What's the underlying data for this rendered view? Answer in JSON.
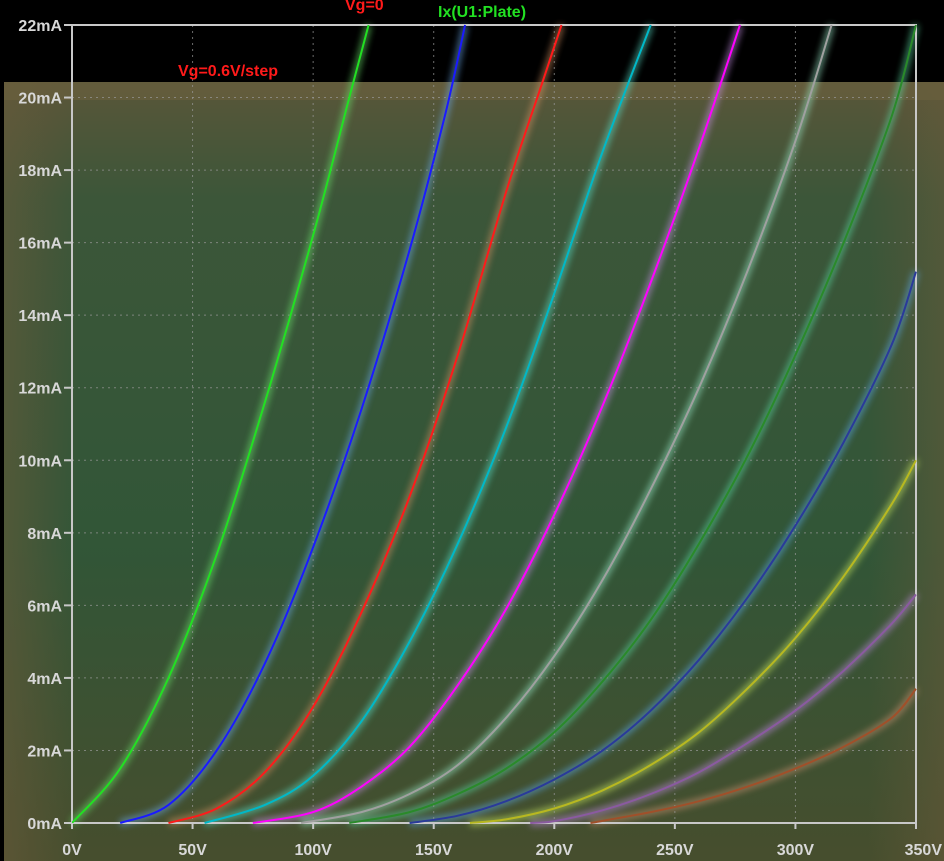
{
  "chart_data": {
    "type": "line",
    "title": "",
    "xlabel": "",
    "ylabel": "",
    "xlim": [
      0,
      350
    ],
    "ylim": [
      0,
      22
    ],
    "grid": true,
    "x_ticks": [
      {
        "value": 0,
        "label": "0V"
      },
      {
        "value": 50,
        "label": "50V"
      },
      {
        "value": 100,
        "label": "100V"
      },
      {
        "value": 150,
        "label": "150V"
      },
      {
        "value": 200,
        "label": "200V"
      },
      {
        "value": 250,
        "label": "250V"
      },
      {
        "value": 300,
        "label": "300V"
      },
      {
        "value": 350,
        "label": "350V"
      }
    ],
    "y_ticks": [
      {
        "value": 0,
        "label": "0mA"
      },
      {
        "value": 2,
        "label": "2mA"
      },
      {
        "value": 4,
        "label": "4mA"
      },
      {
        "value": 6,
        "label": "6mA"
      },
      {
        "value": 8,
        "label": "8mA"
      },
      {
        "value": 10,
        "label": "10mA"
      },
      {
        "value": 12,
        "label": "12mA"
      },
      {
        "value": 14,
        "label": "14mA"
      },
      {
        "value": 16,
        "label": "16mA"
      },
      {
        "value": 18,
        "label": "18mA"
      },
      {
        "value": 20,
        "label": "20mA"
      },
      {
        "value": 22,
        "label": "22mA"
      }
    ],
    "annotations": [
      {
        "text": "Vg=0",
        "color": "#ff1a1a"
      },
      {
        "text": "Ix(U1:Plate)",
        "color": "#22e022"
      },
      {
        "text": "Vg=0.6V/step",
        "color": "#ff1a1a"
      }
    ],
    "series": [
      {
        "color": "#22e022",
        "x": [
          0,
          20,
          40,
          60,
          80,
          100,
          115,
          123
        ],
        "y": [
          0,
          1.5,
          4.0,
          7.4,
          11.6,
          16.2,
          20.0,
          22.0
        ]
      },
      {
        "color": "#1a1aff",
        "x": [
          20,
          40,
          60,
          80,
          100,
          120,
          140,
          155,
          163
        ],
        "y": [
          0,
          0.5,
          2.0,
          4.4,
          7.6,
          11.4,
          15.8,
          19.6,
          22.0
        ]
      },
      {
        "color": "#ff1a1a",
        "x": [
          40,
          60,
          80,
          100,
          120,
          140,
          160,
          180,
          195,
          203
        ],
        "y": [
          0,
          0.4,
          1.4,
          3.2,
          5.8,
          9.0,
          12.9,
          17.4,
          20.4,
          22.0
        ]
      },
      {
        "color": "#00b8c8",
        "x": [
          55,
          80,
          100,
          120,
          140,
          160,
          180,
          200,
          220,
          240
        ],
        "y": [
          0,
          0.5,
          1.3,
          2.8,
          5.0,
          7.7,
          10.9,
          14.6,
          18.5,
          22.0
        ]
      },
      {
        "color": "#ff00ff",
        "x": [
          75,
          100,
          120,
          140,
          160,
          180,
          200,
          220,
          240,
          260,
          277
        ],
        "y": [
          0,
          0.3,
          1.0,
          2.1,
          3.8,
          5.9,
          8.5,
          11.5,
          14.9,
          18.6,
          22.0
        ]
      },
      {
        "color": "#a0a0a0",
        "x": [
          95,
          120,
          140,
          160,
          180,
          200,
          220,
          240,
          260,
          280,
          300,
          315
        ],
        "y": [
          0,
          0.3,
          0.8,
          1.6,
          2.9,
          4.6,
          6.7,
          9.2,
          12.0,
          15.2,
          18.8,
          22.0
        ]
      },
      {
        "color": "#2a8a2a",
        "x": [
          115,
          140,
          160,
          180,
          200,
          220,
          240,
          260,
          280,
          300,
          320,
          340,
          350
        ],
        "y": [
          0,
          0.3,
          0.8,
          1.5,
          2.5,
          3.9,
          5.6,
          7.7,
          10.1,
          12.9,
          16.0,
          19.5,
          22.0
        ]
      },
      {
        "color": "#2a3a9a",
        "x": [
          140,
          160,
          180,
          200,
          220,
          240,
          260,
          280,
          300,
          320,
          340,
          350
        ],
        "y": [
          0,
          0.2,
          0.6,
          1.2,
          2.0,
          3.1,
          4.5,
          6.2,
          8.2,
          10.5,
          13.2,
          15.2
        ]
      },
      {
        "color": "#b8b820",
        "x": [
          165,
          180,
          200,
          220,
          240,
          260,
          280,
          300,
          320,
          340,
          350
        ],
        "y": [
          0,
          0.1,
          0.4,
          0.9,
          1.6,
          2.5,
          3.7,
          5.1,
          6.8,
          8.8,
          10.0
        ]
      },
      {
        "color": "#8a5aa0",
        "x": [
          190,
          200,
          220,
          240,
          260,
          280,
          300,
          320,
          340,
          350
        ],
        "y": [
          0,
          0.05,
          0.35,
          0.8,
          1.4,
          2.2,
          3.1,
          4.2,
          5.5,
          6.3
        ]
      },
      {
        "color": "#a0502a",
        "x": [
          215,
          240,
          260,
          280,
          300,
          320,
          340,
          350
        ],
        "y": [
          0,
          0.3,
          0.6,
          1.0,
          1.5,
          2.1,
          2.9,
          3.7
        ]
      }
    ]
  }
}
